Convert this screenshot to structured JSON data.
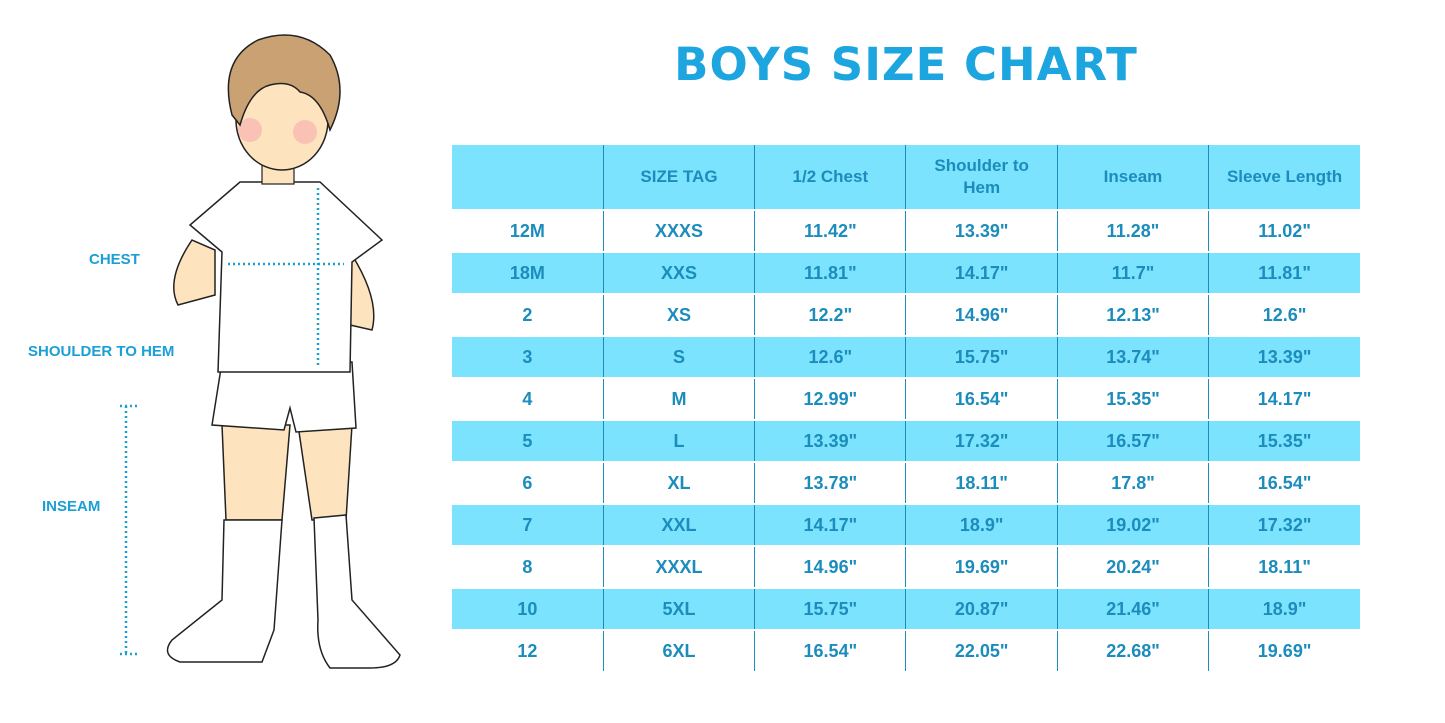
{
  "title": "BOYS SIZE CHART",
  "labels": {
    "chest": "CHEST",
    "shoulder_to_hem": "SHOULDER TO HEM",
    "inseam": "INSEAM"
  },
  "colors": {
    "title": "#1ca5df",
    "band": "#7be3fd",
    "text": "#1b8cbc"
  },
  "chart_data": {
    "type": "table",
    "title": "BOYS SIZE CHART",
    "columns": [
      "",
      "SIZE TAG",
      "1/2 Chest",
      "Shoulder to Hem",
      "Inseam",
      "Sleeve Length"
    ],
    "rows": [
      [
        "12M",
        "XXXS",
        "11.42\"",
        "13.39\"",
        "11.28\"",
        "11.02\""
      ],
      [
        "18M",
        "XXS",
        "11.81\"",
        "14.17\"",
        "11.7\"",
        "11.81\""
      ],
      [
        "2",
        "XS",
        "12.2\"",
        "14.96\"",
        "12.13\"",
        "12.6\""
      ],
      [
        "3",
        "S",
        "12.6\"",
        "15.75\"",
        "13.74\"",
        "13.39\""
      ],
      [
        "4",
        "M",
        "12.99\"",
        "16.54\"",
        "15.35\"",
        "14.17\""
      ],
      [
        "5",
        "L",
        "13.39\"",
        "17.32\"",
        "16.57\"",
        "15.35\""
      ],
      [
        "6",
        "XL",
        "13.78\"",
        "18.11\"",
        "17.8\"",
        "16.54\""
      ],
      [
        "7",
        "XXL",
        "14.17\"",
        "18.9\"",
        "19.02\"",
        "17.32\""
      ],
      [
        "8",
        "XXXL",
        "14.96\"",
        "19.69\"",
        "20.24\"",
        "18.11\""
      ],
      [
        "10",
        "5XL",
        "15.75\"",
        "20.87\"",
        "21.46\"",
        "18.9\""
      ],
      [
        "12",
        "6XL",
        "16.54\"",
        "22.05\"",
        "22.68\"",
        "19.69\""
      ]
    ]
  }
}
